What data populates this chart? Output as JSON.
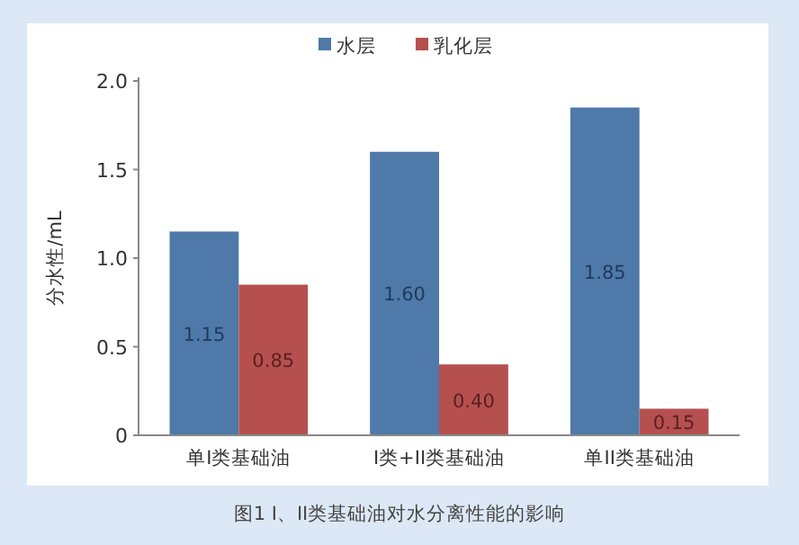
{
  "chart_data": {
    "type": "bar",
    "categories": [
      "单I类基础油",
      "I类+II类基础油",
      "单II类基础油"
    ],
    "series": [
      {
        "name": "水层",
        "color": "#4e79a9",
        "values": [
          1.15,
          1.6,
          1.85
        ],
        "value_labels": [
          "1.15",
          "1.60",
          "1.85"
        ]
      },
      {
        "name": "乳化层",
        "color": "#b5504f",
        "values": [
          0.85,
          0.4,
          0.15
        ],
        "value_labels": [
          "0.85",
          "0.40",
          "0.15"
        ]
      }
    ],
    "ylabel": "分水性/mL",
    "ylim": [
      0,
      2.0
    ],
    "yticks": [
      0,
      0.5,
      {
        "value": 1.0,
        "label": "1.0"
      },
      {
        "value": 1.5,
        "label": "1.5"
      },
      {
        "value": 2.0,
        "label": "2.0"
      }
    ],
    "legend": "top",
    "grid": false,
    "annotations": [
      "图1  I、II类基础油对水分离性能的影响"
    ]
  }
}
